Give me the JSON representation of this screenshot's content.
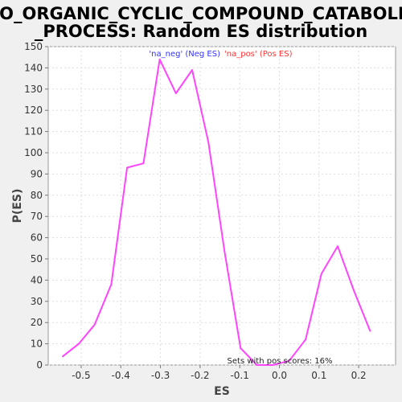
{
  "chart_data": {
    "type": "line",
    "title_lines": [
      "GO_ORGANIC_CYCLIC_COMPOUND_CATABOLIC",
      "_PROCESS: Random ES distribution"
    ],
    "xlabel": "ES",
    "ylabel": "P(ES)",
    "xlim": [
      -0.583,
      0.293
    ],
    "ylim": [
      0,
      150
    ],
    "x_ticks": [
      -0.5,
      -0.4,
      -0.3,
      -0.2,
      -0.1,
      0.0,
      0.1,
      0.2
    ],
    "x_tick_labels": [
      "-0.5",
      "-0.4",
      "-0.3",
      "-0.2",
      "-0.1",
      "0.0",
      "0.1",
      "0.2"
    ],
    "y_ticks": [
      0,
      10,
      20,
      30,
      40,
      50,
      60,
      70,
      80,
      90,
      100,
      110,
      120,
      130,
      140,
      150
    ],
    "grid": true,
    "legend": [
      {
        "label": "'na_neg' (Neg ES)",
        "color": "#3333ff"
      },
      {
        "label": "'na_pos' (Pos ES)",
        "color": "#ff3333"
      }
    ],
    "annotation": "Sets with pos scores: 16%",
    "series": [
      {
        "color": "#ff44ff",
        "x": [
          -0.547,
          -0.506,
          -0.466,
          -0.424,
          -0.384,
          -0.343,
          -0.302,
          -0.261,
          -0.22,
          -0.179,
          -0.138,
          -0.098,
          -0.057,
          -0.016,
          0.025,
          0.066,
          0.106,
          0.147,
          0.188,
          0.229
        ],
        "y": [
          4,
          10,
          19,
          38,
          93,
          95,
          144,
          128,
          139,
          105,
          53,
          8,
          0,
          0,
          2,
          12,
          43,
          56,
          35,
          16
        ]
      }
    ]
  }
}
